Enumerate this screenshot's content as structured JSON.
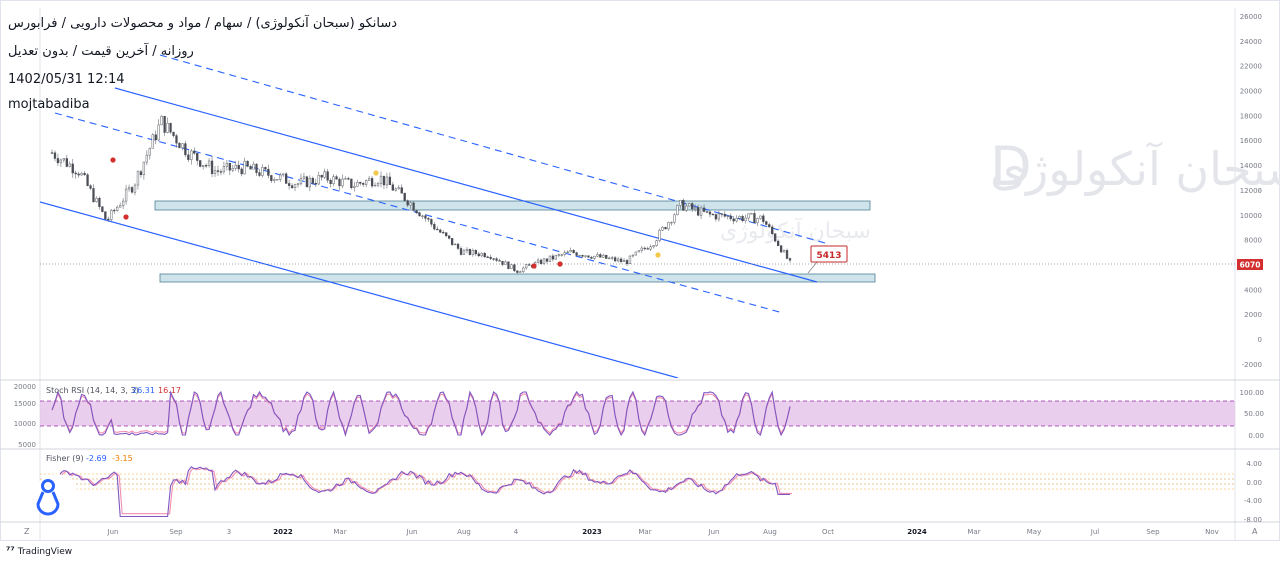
{
  "header": {
    "title": "دسانکو (سبحان آنکولوژی) / سهام / مواد و محصولات دارویی / فرابورس",
    "subtitle": "روزانه / آخرین قیمت / بدون تعدیل",
    "datetime": "1402/05/31 12:14",
    "author": "mojtabadiba"
  },
  "watermark": {
    "main": "داروسازی سبحان آنکولوژی",
    "letter": "D",
    "small": "سبحان آنکولوژی"
  },
  "main_axis": {
    "ticks": [
      "26000",
      "24000",
      "22000",
      "20000",
      "18000",
      "16000",
      "14000",
      "12000",
      "10000",
      "8000",
      "6000",
      "4000",
      "2000",
      "0",
      "-2000"
    ],
    "tick_values": [
      26000,
      24000,
      22000,
      20000,
      18000,
      16000,
      14000,
      12000,
      10000,
      8000,
      6000,
      4000,
      2000,
      0,
      -2000
    ],
    "last_price_label": "6070",
    "last_price": 6070
  },
  "callout": {
    "label": "5413",
    "value": 5413
  },
  "volume_axis": {
    "ticks": [
      "20000",
      "15000",
      "10000",
      "5000"
    ]
  },
  "rsi": {
    "title": "Stoch RSI (14, 14, 3, 3)",
    "k_value": "26.31",
    "d_value": "16.17",
    "ticks": [
      "100.00",
      "50.00",
      "0.00"
    ]
  },
  "fisher": {
    "title": "Fisher (9)",
    "v1": "-2.69",
    "v2": "-3.15",
    "ticks": [
      "4.00",
      "0.00",
      "-4.00",
      "-8.00"
    ]
  },
  "time_axis": {
    "labels": [
      "Jun",
      "Sep",
      "3",
      "2022",
      "Mar",
      "Jun",
      "Aug",
      "4",
      "2023",
      "Mar",
      "Jun",
      "Aug",
      "Oct",
      "2024",
      "Mar",
      "May",
      "Jul",
      "Sep",
      "Nov"
    ]
  },
  "buttons": {
    "left": "Z",
    "right": "A"
  },
  "brand": "TradingView",
  "colors": {
    "up": "#26a69a",
    "down": "#ef5350",
    "candle": "#555a63",
    "channel": "#2962ff",
    "zone_fill": "#cfe3ea",
    "rsi_band": "#e1bee7",
    "k_line": "#7e57c2",
    "d_line": "#f48fb1",
    "price_tag": "#d32f2f",
    "marker_red": "#d32f2f",
    "marker_yellow": "#f2c94c"
  },
  "chart_data": {
    "type": "candlestick",
    "title": "دسانکو (سبحان آنکولوژی) / سهام / مواد و محصولات دارویی / فرابورس",
    "x_range": [
      "2021-05",
      "2024-11"
    ],
    "ylim": [
      -3000,
      26500
    ],
    "series": [
      {
        "name": "Close",
        "x": [
          "2021-05",
          "2021-06",
          "2021-07",
          "2021-08",
          "2021-09",
          "2021-10",
          "2021-11",
          "2021-12",
          "2022-01",
          "2022-02",
          "2022-03",
          "2022-04",
          "2022-05",
          "2022-06",
          "2022-07",
          "2022-08",
          "2022-09",
          "2022-10",
          "2022-11",
          "2022-12",
          "2023-01",
          "2023-02",
          "2023-03",
          "2023-04",
          "2023-05",
          "2023-06",
          "2023-07",
          "2023-08"
        ],
        "values": [
          15000,
          13500,
          9500,
          12500,
          17500,
          15000,
          13500,
          13800,
          13200,
          12500,
          13000,
          12400,
          13000,
          11200,
          9000,
          7000,
          6800,
          5500,
          6300,
          7000,
          6600,
          6200,
          7800,
          10800,
          10000,
          9800,
          9700,
          6100
        ]
      }
    ],
    "annotations": [
      {
        "text": "5413",
        "type": "callout"
      },
      {
        "text": "6070",
        "type": "last price"
      }
    ],
    "indicators": [
      {
        "name": "Stoch RSI (14, 14, 3, 3)",
        "values": {
          "K": 26.31,
          "D": 16.17
        },
        "ylim": [
          0,
          100
        ]
      },
      {
        "name": "Fisher (9)",
        "values": {
          "fisher": -2.69,
          "trigger": -3.15
        },
        "ylim": [
          -8,
          4
        ]
      }
    ],
    "grid": false,
    "legend": "top-left"
  }
}
